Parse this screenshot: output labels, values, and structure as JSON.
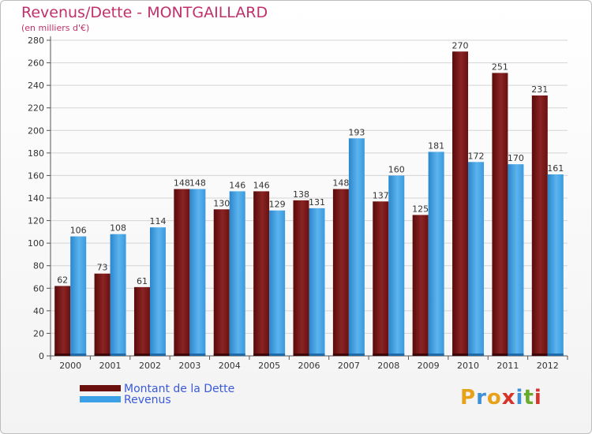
{
  "header": {
    "title": "Revenus/Dette - MONTGAILLARD",
    "subtitle": "(en milliers d'€)"
  },
  "legend": {
    "items": [
      {
        "label": "Montant de la Dette",
        "color": "#6b0f0f"
      },
      {
        "label": "Revenus",
        "color": "#3ca0e6"
      }
    ]
  },
  "logo": {
    "text": "Proxiti"
  },
  "chart_data": {
    "type": "bar",
    "categories": [
      "2000",
      "2001",
      "2002",
      "2003",
      "2004",
      "2005",
      "2006",
      "2007",
      "2008",
      "2009",
      "2010",
      "2011",
      "2012"
    ],
    "series": [
      {
        "name": "Montant de la Dette",
        "color": "#7a1414",
        "values": [
          62,
          73,
          61,
          148,
          130,
          146,
          138,
          148,
          137,
          125,
          270,
          251,
          231
        ]
      },
      {
        "name": "Revenus",
        "color": "#3ca0e6",
        "values": [
          106,
          108,
          114,
          148,
          146,
          129,
          131,
          193,
          160,
          181,
          172,
          170,
          161
        ]
      }
    ],
    "ylim": [
      0,
      280
    ],
    "yticks": [
      0,
      20,
      40,
      60,
      80,
      100,
      120,
      140,
      160,
      180,
      200,
      220,
      240,
      260,
      280
    ],
    "grid": true,
    "legend_position": "bottom-left"
  }
}
